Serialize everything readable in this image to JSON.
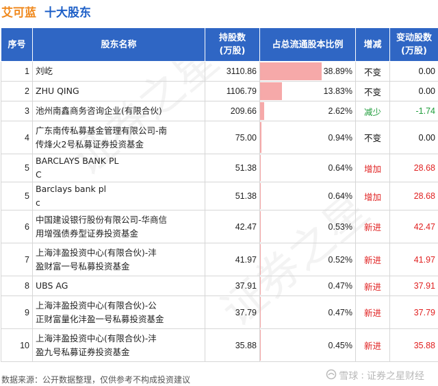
{
  "header": {
    "company": "艾可蓝",
    "section": "十大股东"
  },
  "table": {
    "columns": {
      "index": "序号",
      "name": "股东名称",
      "shares_line1": "持股数",
      "shares_line2": "(万股)",
      "ratio": "占总流通股本比例",
      "change": "增减",
      "amount_line1": "变动股数",
      "amount_line2": "(万股)"
    },
    "rows": [
      {
        "index": "1",
        "name_lines": [
          "刘屹"
        ],
        "shares": "3110.86",
        "ratio": "38.89%",
        "ratio_value": 38.89,
        "change": "不变",
        "change_type": "flat",
        "amount": "0.00"
      },
      {
        "index": "2",
        "name_lines": [
          "ZHU QING"
        ],
        "shares": "1106.79",
        "ratio": "13.83%",
        "ratio_value": 13.83,
        "change": "不变",
        "change_type": "flat",
        "amount": "0.00"
      },
      {
        "index": "3",
        "name_lines": [
          "池州南鑫商务咨询企业(有限合伙)"
        ],
        "shares": "209.66",
        "ratio": "2.62%",
        "ratio_value": 2.62,
        "change": "减少",
        "change_type": "down",
        "amount": "-1.74"
      },
      {
        "index": "4",
        "name_lines": [
          "广东南传私募基金管理有限公司-南",
          "传烽火2号私募证券投资基金"
        ],
        "shares": "75.00",
        "ratio": "0.94%",
        "ratio_value": 0.94,
        "change": "不变",
        "change_type": "flat",
        "amount": "0.00"
      },
      {
        "index": "5",
        "name_lines": [
          "BARCLAYS BANK PL",
          "C"
        ],
        "shares": "51.38",
        "ratio": "0.64%",
        "ratio_value": 0.64,
        "change": "增加",
        "change_type": "up",
        "amount": "28.68"
      },
      {
        "index": "5",
        "name_lines": [
          "Barclays bank pl",
          "c"
        ],
        "shares": "51.38",
        "ratio": "0.64%",
        "ratio_value": 0.64,
        "change": "增加",
        "change_type": "up",
        "amount": "28.68"
      },
      {
        "index": "6",
        "name_lines": [
          "中国建设银行股份有限公司-华商信",
          "用增强债券型证券投资基金"
        ],
        "shares": "42.47",
        "ratio": "0.53%",
        "ratio_value": 0.53,
        "change": "新进",
        "change_type": "up",
        "amount": "42.47"
      },
      {
        "index": "7",
        "name_lines": [
          "上海沣盈投资中心(有限合伙)-沣",
          "盈财富一号私募投资基金"
        ],
        "shares": "41.97",
        "ratio": "0.52%",
        "ratio_value": 0.52,
        "change": "新进",
        "change_type": "up",
        "amount": "41.97"
      },
      {
        "index": "8",
        "name_lines": [
          "UBS AG"
        ],
        "shares": "37.91",
        "ratio": "0.47%",
        "ratio_value": 0.47,
        "change": "新进",
        "change_type": "up",
        "amount": "37.91"
      },
      {
        "index": "9",
        "name_lines": [
          "上海沣盈投资中心(有限合伙)-公",
          "正财富量化沣盈一号私募投资基金"
        ],
        "shares": "37.79",
        "ratio": "0.47%",
        "ratio_value": 0.47,
        "change": "新进",
        "change_type": "up",
        "amount": "37.79"
      },
      {
        "index": "10",
        "name_lines": [
          "上海沣盈投资中心(有限合伙)-沣",
          "盈九号私募证券投资基金"
        ],
        "shares": "35.88",
        "ratio": "0.45%",
        "ratio_value": 0.45,
        "change": "新进",
        "change_type": "up",
        "amount": "35.88"
      }
    ]
  },
  "footer": {
    "source": "数据来源：公开数据整理，仅供参考不构成投资建议",
    "brand_left": "雪球",
    "brand_sep": ":",
    "brand_right": "证券之星财经"
  },
  "watermark": "证券之星",
  "colors": {
    "header_bg": "#2f66c4",
    "company_title": "#f0891d",
    "section_title": "#1d5fc7",
    "bar": "#f6a9a9",
    "increase": "#e02020",
    "decrease": "#1e9c3a"
  }
}
